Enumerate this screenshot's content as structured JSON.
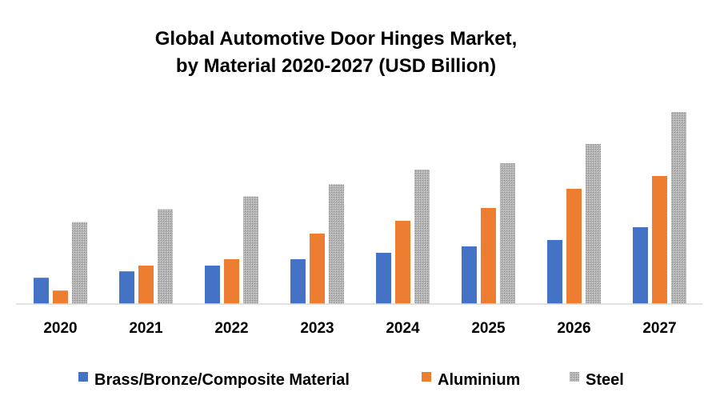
{
  "chart_data": {
    "type": "bar",
    "title": "Global Automotive Door Hinges Market,",
    "subtitle": "by Material 2020-2027 (USD Billion)",
    "xlabel": "",
    "ylabel": "",
    "ylim": [
      0,
      3.0
    ],
    "grid": false,
    "legend_position": "bottom",
    "categories": [
      "2020",
      "2021",
      "2022",
      "2023",
      "2024",
      "2025",
      "2026",
      "2027"
    ],
    "series": [
      {
        "name": "Brass/Bronze/Composite Material",
        "color": "#4472c4",
        "pattern": "solid",
        "values": [
          0.41,
          0.51,
          0.6,
          0.7,
          0.8,
          0.9,
          1.0,
          1.2
        ]
      },
      {
        "name": "Aluminium",
        "color": "#ed7d31",
        "pattern": "solid",
        "values": [
          0.21,
          0.6,
          0.7,
          1.1,
          1.3,
          1.5,
          1.8,
          2.0
        ]
      },
      {
        "name": "Steel",
        "color": "#a5a5a5",
        "pattern": "dotted",
        "values": [
          1.28,
          1.48,
          1.68,
          1.87,
          2.1,
          2.2,
          2.5,
          3.0
        ]
      }
    ]
  }
}
